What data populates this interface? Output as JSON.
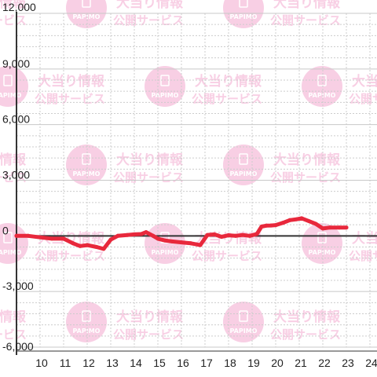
{
  "watermark": {
    "line1": "大当り情報",
    "line2": "公開サービス",
    "logo_text": "PAPIMO",
    "color": "#f6bfdc"
  },
  "chart_data": {
    "type": "line",
    "title": "",
    "xlabel": "",
    "ylabel": "",
    "xlim": [
      9,
      24.3
    ],
    "ylim": [
      -6000,
      12000
    ],
    "x_ticks": [
      10,
      11,
      12,
      13,
      14,
      15,
      16,
      17,
      18,
      19,
      20,
      21,
      22,
      23,
      24
    ],
    "x_tick_labels": [
      "10",
      "11",
      "12",
      "13",
      "14",
      "15",
      "16",
      "17",
      "18",
      "19",
      "20",
      "21",
      "22",
      "23",
      "24"
    ],
    "y_ticks": [
      -6000,
      -3000,
      0,
      3000,
      6000,
      9000,
      12000
    ],
    "y_tick_labels": [
      "-6,000",
      "-3,000",
      "0",
      "3,000",
      "6,000",
      "9,000",
      "12,000"
    ],
    "grid": true,
    "colors": {
      "line": "#e8283c",
      "axis": "#333333",
      "grid_major": "#c8c8c8",
      "grid_minor": "#cccccc"
    },
    "series": [
      {
        "x": [
          9.0,
          9.5,
          10.0,
          10.5,
          11.0,
          11.4,
          11.7,
          12.0,
          12.4,
          12.7,
          13.0,
          13.3,
          13.7,
          14.0,
          14.3,
          14.5,
          14.8,
          15.0,
          15.3,
          15.6,
          16.0,
          16.4,
          16.8,
          17.1,
          17.4,
          17.7,
          18.0,
          18.3,
          18.6,
          18.9,
          19.2,
          19.4,
          19.6,
          19.8,
          20.0,
          20.3,
          20.6,
          20.9,
          21.1,
          21.4,
          21.7,
          22.0,
          22.3,
          22.7,
          23.0
        ],
        "y": [
          0,
          0,
          -80,
          -150,
          -150,
          -400,
          -550,
          -500,
          -600,
          -700,
          -200,
          0,
          50,
          80,
          100,
          200,
          0,
          -150,
          -250,
          -300,
          -350,
          -400,
          -500,
          50,
          80,
          -50,
          30,
          0,
          50,
          0,
          100,
          500,
          550,
          560,
          580,
          700,
          850,
          900,
          950,
          800,
          650,
          400,
          450,
          450,
          450
        ]
      }
    ]
  }
}
